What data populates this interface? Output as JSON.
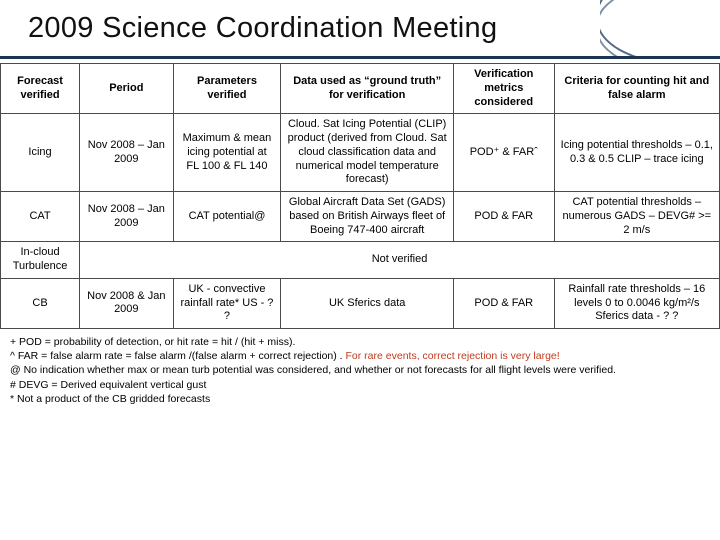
{
  "title": "2009 Science Coordination Meeting",
  "colors": {
    "title_underline": "#1b3551",
    "deco_stroke": "#24456b",
    "table_border": "#4a4a4a",
    "rare_text": "#c33a1d",
    "background": "#ffffff",
    "text": "#000000"
  },
  "table": {
    "headers": {
      "c1": "Forecast verified",
      "c2": "Period",
      "c3": "Parameters verified",
      "c4": "Data used as “ground truth” for verification",
      "c5": "Verification metrics considered",
      "c6": "Criteria for counting hit and false alarm"
    },
    "rows": [
      {
        "c1": "Icing",
        "c2": "Nov 2008 – Jan 2009",
        "c3": "Maximum & mean icing potential at FL 100 & FL 140",
        "c4": "Cloud. Sat Icing Potential (CLIP) product (derived from Cloud. Sat cloud classification data and numerical model temperature forecast)",
        "c5": "POD⁺ & FARˆ",
        "c6": "Icing potential thresholds – 0.1, 0.3 & 0.5 CLIP – trace icing"
      },
      {
        "c1": "CAT",
        "c2": "Nov 2008 – Jan 2009",
        "c3": "CAT potential@",
        "c4": "Global Aircraft Data Set (GADS) based on British Airways fleet of Boeing 747-400 aircraft",
        "c5": "POD & FAR",
        "c6": "CAT potential thresholds – numerous GADS – DEVG# >= 2 m/s"
      },
      {
        "c1": "In-cloud Turbulence",
        "span": "Not verified"
      },
      {
        "c1": "CB",
        "c2": "Nov 2008 & Jan 2009",
        "c3": "UK - convective rainfall rate* US - ? ?",
        "c4": "UK Sferics data",
        "c5": "POD & FAR",
        "c6": "Rainfall rate thresholds – 16 levels 0 to 0.0046 kg/m²/s Sferics data - ? ?"
      }
    ]
  },
  "footnotes": {
    "l1a": "+ POD = probability of detection, or hit rate = hit / (hit + miss).",
    "l2a": "^ FAR = false alarm rate = false alarm /(false alarm + correct rejection) . ",
    "l2b": "For rare events, correct rejection is very large!",
    "l3": "@ No indication whether max or mean turb potential was considered, and whether or not forecasts for all flight levels were verified.",
    "l4": "# DEVG = Derived equivalent vertical gust",
    "l5": "* Not a product of the CB gridded forecasts"
  }
}
